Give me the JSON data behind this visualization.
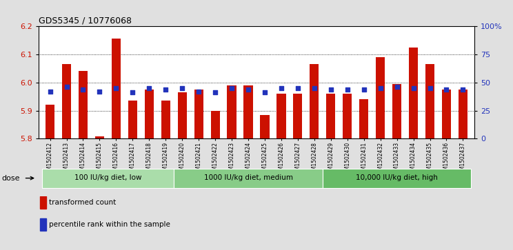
{
  "title": "GDS5345 / 10776068",
  "samples": [
    "GSM1502412",
    "GSM1502413",
    "GSM1502414",
    "GSM1502415",
    "GSM1502416",
    "GSM1502417",
    "GSM1502418",
    "GSM1502419",
    "GSM1502420",
    "GSM1502421",
    "GSM1502422",
    "GSM1502423",
    "GSM1502424",
    "GSM1502425",
    "GSM1502426",
    "GSM1502427",
    "GSM1502428",
    "GSM1502429",
    "GSM1502430",
    "GSM1502431",
    "GSM1502432",
    "GSM1502433",
    "GSM1502434",
    "GSM1502435",
    "GSM1502436",
    "GSM1502437"
  ],
  "transformed_count": [
    5.92,
    6.065,
    6.04,
    5.808,
    6.155,
    5.935,
    5.975,
    5.935,
    5.965,
    5.975,
    5.9,
    5.99,
    5.99,
    5.885,
    5.96,
    5.96,
    6.065,
    5.96,
    5.96,
    5.94,
    6.09,
    5.995,
    6.125,
    6.065,
    5.975,
    5.975
  ],
  "percentile_rank": [
    42,
    46,
    44,
    42,
    45,
    41,
    45,
    44,
    45,
    42,
    41,
    45,
    44,
    41,
    45,
    45,
    45,
    44,
    44,
    44,
    45,
    46,
    45,
    45,
    44,
    44
  ],
  "ylim": [
    5.8,
    6.2
  ],
  "y_ticks": [
    5.8,
    5.9,
    6.0,
    6.1,
    6.2
  ],
  "right_yticks": [
    0,
    25,
    50,
    75,
    100
  ],
  "bar_color": "#cc1100",
  "dot_color": "#2233bb",
  "background_color": "#e0e0e0",
  "plot_bg_color": "#ffffff",
  "groups": [
    {
      "label": "100 IU/kg diet, low",
      "start": 0,
      "end": 8,
      "color": "#aaddaa"
    },
    {
      "label": "1000 IU/kg diet, medium",
      "start": 8,
      "end": 17,
      "color": "#88cc88"
    },
    {
      "label": "10,000 IU/kg diet, high",
      "start": 17,
      "end": 26,
      "color": "#66bb66"
    }
  ],
  "legend_items": [
    {
      "label": "transformed count",
      "color": "#cc1100"
    },
    {
      "label": "percentile rank within the sample",
      "color": "#2233bb"
    }
  ],
  "dose_label": "dose",
  "bar_width": 0.55
}
